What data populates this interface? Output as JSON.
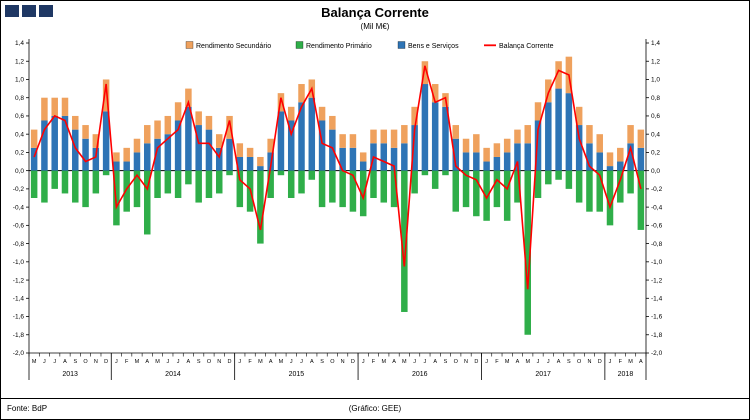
{
  "header": {
    "title": "Balança Corrente",
    "subtitle": "(Mil M€)"
  },
  "footer": {
    "source": "Fonte: BdP",
    "credit": "(Gráfico: GEE)"
  },
  "logo": {
    "square_count": 3,
    "color": "#1F3864"
  },
  "chart_data": {
    "type": "bar",
    "subtype": "stacked-bars-with-line-overlay",
    "title": "Balança Corrente",
    "subtitle": "(Mil M€)",
    "ylim": [
      -2.0,
      1.4
    ],
    "ytick_step": 0.2,
    "grid": false,
    "legend_position": "top-center",
    "months": [
      "M",
      "J",
      "J",
      "A",
      "S",
      "O",
      "N",
      "D",
      "J",
      "F",
      "M",
      "A",
      "M",
      "J",
      "J",
      "A",
      "S",
      "O",
      "N",
      "D",
      "J",
      "F",
      "M",
      "A",
      "M",
      "J",
      "J",
      "A",
      "S",
      "O",
      "N",
      "D",
      "J",
      "F",
      "M",
      "A",
      "M",
      "J",
      "J",
      "A",
      "S",
      "O",
      "N",
      "D",
      "J",
      "F",
      "M",
      "A",
      "M",
      "J",
      "J",
      "A",
      "S",
      "O",
      "N",
      "D",
      "J",
      "F",
      "M",
      "A"
    ],
    "years": [
      {
        "label": "2013",
        "count": 8
      },
      {
        "label": "2014",
        "count": 12
      },
      {
        "label": "2015",
        "count": 12
      },
      {
        "label": "2016",
        "count": 12
      },
      {
        "label": "2017",
        "count": 12
      },
      {
        "label": "2018",
        "count": 4
      }
    ],
    "series": [
      {
        "name": "Rendimento Secundário",
        "kind": "bar",
        "color": "#EFA15D",
        "values": [
          0.2,
          0.25,
          0.2,
          0.2,
          0.15,
          0.15,
          0.15,
          0.35,
          0.1,
          0.15,
          0.15,
          0.2,
          0.2,
          0.2,
          0.2,
          0.2,
          0.15,
          0.15,
          0.15,
          0.25,
          0.15,
          0.1,
          0.1,
          0.15,
          0.2,
          0.15,
          0.2,
          0.2,
          0.15,
          0.15,
          0.15,
          0.15,
          0.1,
          0.15,
          0.15,
          0.2,
          0.2,
          0.2,
          0.25,
          0.2,
          0.15,
          0.15,
          0.15,
          0.2,
          0.15,
          0.15,
          0.15,
          0.15,
          0.2,
          0.2,
          0.25,
          0.3,
          0.4,
          0.2,
          0.2,
          0.2,
          0.15,
          0.15,
          0.2,
          0.2
        ]
      },
      {
        "name": "Rendimento Primário",
        "kind": "bar",
        "color": "#2FAE49",
        "values": [
          -0.3,
          -0.35,
          -0.2,
          -0.25,
          -0.35,
          -0.4,
          -0.25,
          -0.05,
          -0.6,
          -0.45,
          -0.4,
          -0.7,
          -0.3,
          -0.25,
          -0.3,
          -0.15,
          -0.35,
          -0.3,
          -0.25,
          -0.05,
          -0.4,
          -0.45,
          -0.8,
          -0.3,
          -0.05,
          -0.3,
          -0.25,
          -0.1,
          -0.4,
          -0.35,
          -0.4,
          -0.45,
          -0.5,
          -0.3,
          -0.35,
          -0.4,
          -1.55,
          -0.25,
          -0.05,
          -0.2,
          -0.05,
          -0.45,
          -0.4,
          -0.5,
          -0.55,
          -0.4,
          -0.55,
          -0.35,
          -1.8,
          -0.3,
          -0.15,
          -0.1,
          -0.2,
          -0.35,
          -0.45,
          -0.45,
          -0.6,
          -0.35,
          -0.25,
          -0.65
        ]
      },
      {
        "name": "Bens e Serviços",
        "kind": "bar",
        "color": "#2E74B5",
        "values": [
          0.25,
          0.55,
          0.6,
          0.6,
          0.45,
          0.35,
          0.25,
          0.65,
          0.1,
          0.1,
          0.2,
          0.3,
          0.35,
          0.4,
          0.55,
          0.7,
          0.5,
          0.45,
          0.25,
          0.35,
          0.15,
          0.15,
          0.05,
          0.2,
          0.65,
          0.55,
          0.75,
          0.8,
          0.55,
          0.45,
          0.25,
          0.25,
          0.1,
          0.3,
          0.3,
          0.25,
          0.3,
          0.5,
          0.95,
          0.75,
          0.7,
          0.35,
          0.2,
          0.2,
          0.1,
          0.15,
          0.2,
          0.3,
          0.3,
          0.55,
          0.75,
          0.9,
          0.85,
          0.5,
          0.3,
          0.2,
          0.05,
          0.1,
          0.3,
          0.25
        ]
      },
      {
        "name": "Balança Corrente",
        "kind": "line",
        "color": "#FF0000",
        "values": [
          0.15,
          0.45,
          0.6,
          0.55,
          0.25,
          0.1,
          0.15,
          0.95,
          -0.4,
          -0.2,
          -0.05,
          -0.2,
          0.25,
          0.35,
          0.45,
          0.75,
          0.3,
          0.3,
          0.15,
          0.55,
          -0.1,
          -0.2,
          -0.65,
          0.05,
          0.8,
          0.4,
          0.7,
          0.9,
          0.3,
          0.25,
          0.0,
          -0.05,
          -0.3,
          0.15,
          0.1,
          0.05,
          -1.05,
          0.45,
          1.15,
          0.75,
          0.8,
          0.05,
          -0.05,
          -0.1,
          -0.3,
          -0.1,
          -0.2,
          0.1,
          -1.3,
          0.45,
          0.85,
          1.1,
          1.05,
          0.35,
          0.05,
          -0.05,
          -0.4,
          -0.1,
          0.25,
          -0.2
        ]
      }
    ]
  }
}
